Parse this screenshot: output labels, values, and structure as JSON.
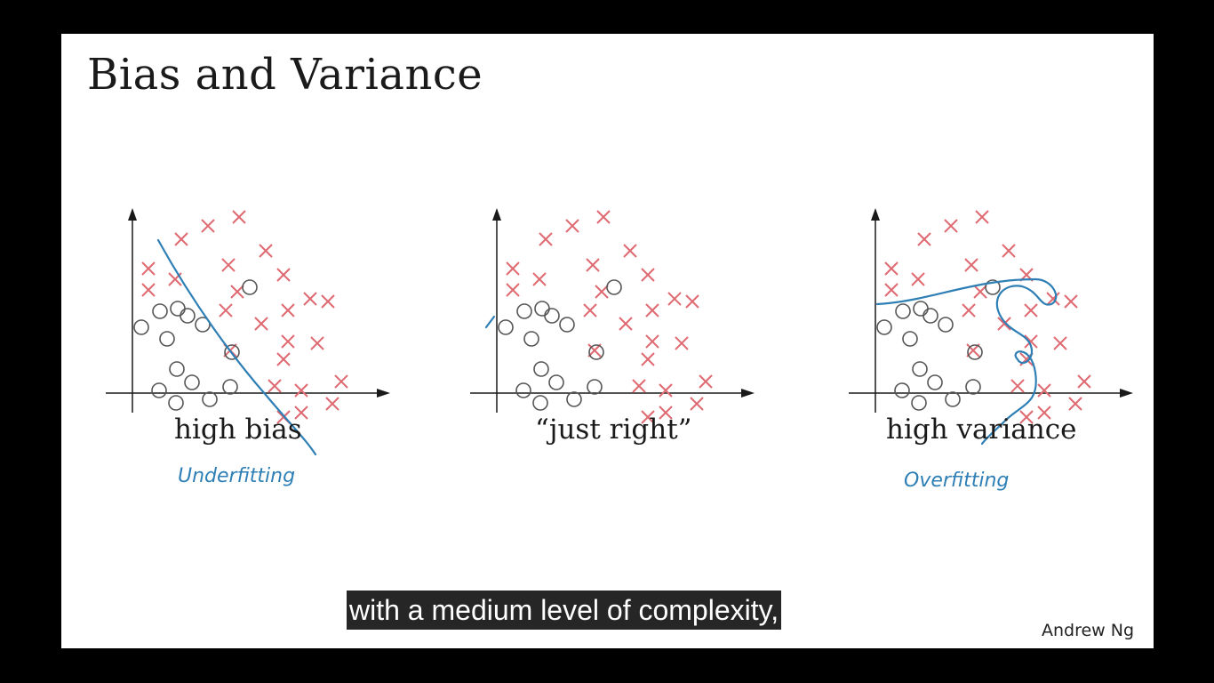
{
  "slide": {
    "title": "Bias and Variance",
    "author": "Andrew Ng"
  },
  "colors": {
    "cross": "#e06a72",
    "circle": "#555555",
    "boundary": "#2e7fb5",
    "axis": "#1a1a1a",
    "note": "#2e7fb5"
  },
  "icons": {
    "positive": "cross-mark",
    "negative": "circle-mark"
  },
  "panels": [
    {
      "id": "high-bias",
      "caption": "high bias",
      "note": "Underfitting"
    },
    {
      "id": "just-right",
      "caption": "“just right”",
      "note": ""
    },
    {
      "id": "high-variance",
      "caption": "high variance",
      "note": "Overfitting"
    }
  ],
  "subtitle": "with a medium level of complexity,"
}
